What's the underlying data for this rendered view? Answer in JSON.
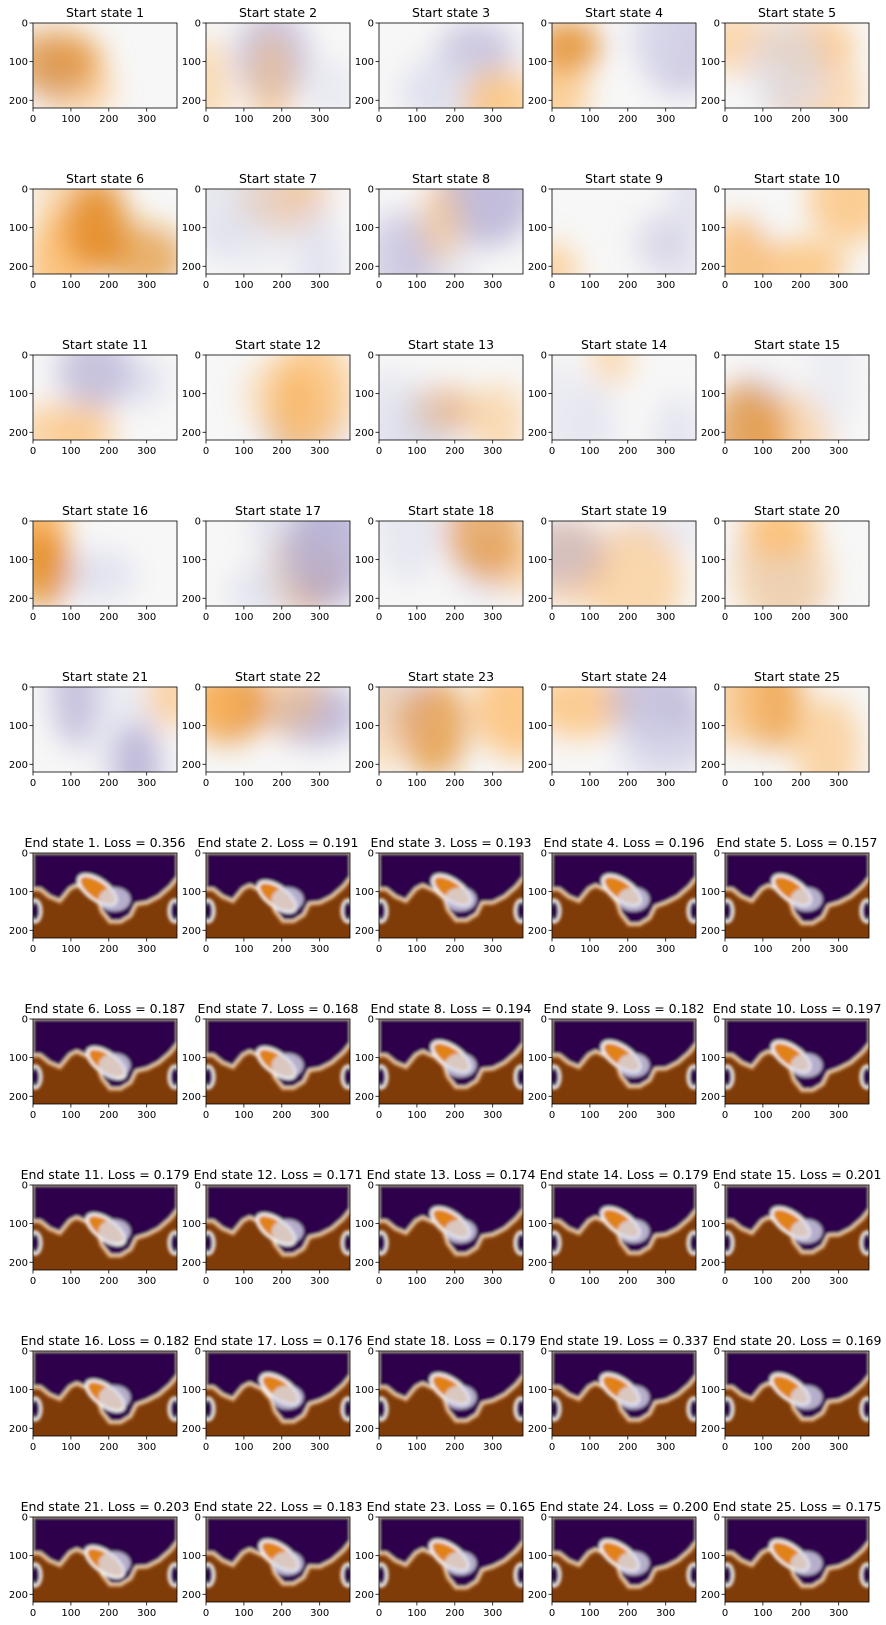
{
  "chart_data": {
    "type": "heatmap",
    "layout": {
      "rows": 10,
      "cols": 5
    },
    "xticks": [
      0,
      100,
      200,
      300
    ],
    "yticks": [
      0,
      100,
      200
    ],
    "xlim": [
      0,
      380
    ],
    "ylim": [
      220,
      0
    ],
    "colormap_start": "PuOr",
    "colormap_end": "PuOr",
    "colors": {
      "purple": "#2d004b",
      "white": "#f7f7f7",
      "orange": "#b35806",
      "brown": "#7f3b08"
    },
    "panels": [
      {
        "title": "Start state 1",
        "group": "start"
      },
      {
        "title": "Start state 2",
        "group": "start"
      },
      {
        "title": "Start state 3",
        "group": "start"
      },
      {
        "title": "Start state 4",
        "group": "start"
      },
      {
        "title": "Start state 5",
        "group": "start"
      },
      {
        "title": "Start state 6",
        "group": "start"
      },
      {
        "title": "Start state 7",
        "group": "start"
      },
      {
        "title": "Start state 8",
        "group": "start"
      },
      {
        "title": "Start state 9",
        "group": "start"
      },
      {
        "title": "Start state 10",
        "group": "start"
      },
      {
        "title": "Start state 11",
        "group": "start"
      },
      {
        "title": "Start state 12",
        "group": "start"
      },
      {
        "title": "Start state 13",
        "group": "start"
      },
      {
        "title": "Start state 14",
        "group": "start"
      },
      {
        "title": "Start state 15",
        "group": "start"
      },
      {
        "title": "Start state 16",
        "group": "start"
      },
      {
        "title": "Start state 17",
        "group": "start"
      },
      {
        "title": "Start state 18",
        "group": "start"
      },
      {
        "title": "Start state 19",
        "group": "start"
      },
      {
        "title": "Start state 20",
        "group": "start"
      },
      {
        "title": "Start state 21",
        "group": "start"
      },
      {
        "title": "Start state 22",
        "group": "start"
      },
      {
        "title": "Start state 23",
        "group": "start"
      },
      {
        "title": "Start state 24",
        "group": "start"
      },
      {
        "title": "Start state 25",
        "group": "start"
      },
      {
        "title": "End state 1. Loss = 0.356",
        "group": "end",
        "loss": 0.356
      },
      {
        "title": "End state 2. Loss = 0.191",
        "group": "end",
        "loss": 0.191
      },
      {
        "title": "End state 3. Loss = 0.193",
        "group": "end",
        "loss": 0.193
      },
      {
        "title": "End state 4. Loss = 0.196",
        "group": "end",
        "loss": 0.196
      },
      {
        "title": "End state 5. Loss = 0.157",
        "group": "end",
        "loss": 0.157
      },
      {
        "title": "End state 6. Loss = 0.187",
        "group": "end",
        "loss": 0.187
      },
      {
        "title": "End state 7. Loss = 0.168",
        "group": "end",
        "loss": 0.168
      },
      {
        "title": "End state 8. Loss = 0.194",
        "group": "end",
        "loss": 0.194
      },
      {
        "title": "End state 9. Loss = 0.182",
        "group": "end",
        "loss": 0.182
      },
      {
        "title": "End state 10. Loss = 0.197",
        "group": "end",
        "loss": 0.197
      },
      {
        "title": "End state 11. Loss = 0.179",
        "group": "end",
        "loss": 0.179
      },
      {
        "title": "End state 12. Loss = 0.171",
        "group": "end",
        "loss": 0.171
      },
      {
        "title": "End state 13. Loss = 0.174",
        "group": "end",
        "loss": 0.174
      },
      {
        "title": "End state 14. Loss = 0.179",
        "group": "end",
        "loss": 0.179
      },
      {
        "title": "End state 15. Loss = 0.201",
        "group": "end",
        "loss": 0.201
      },
      {
        "title": "End state 16. Loss = 0.182",
        "group": "end",
        "loss": 0.182
      },
      {
        "title": "End state 17. Loss = 0.176",
        "group": "end",
        "loss": 0.176
      },
      {
        "title": "End state 18. Loss = 0.179",
        "group": "end",
        "loss": 0.179
      },
      {
        "title": "End state 19. Loss = 0.337",
        "group": "end",
        "loss": 0.337
      },
      {
        "title": "End state 20. Loss = 0.169",
        "group": "end",
        "loss": 0.169
      },
      {
        "title": "End state 21. Loss = 0.203",
        "group": "end",
        "loss": 0.203
      },
      {
        "title": "End state 22. Loss = 0.183",
        "group": "end",
        "loss": 0.183
      },
      {
        "title": "End state 23. Loss = 0.165",
        "group": "end",
        "loss": 0.165
      },
      {
        "title": "End state 24. Loss = 0.200",
        "group": "end",
        "loss": 0.2
      },
      {
        "title": "End state 25. Loss = 0.175",
        "group": "end",
        "loss": 0.175
      }
    ]
  }
}
